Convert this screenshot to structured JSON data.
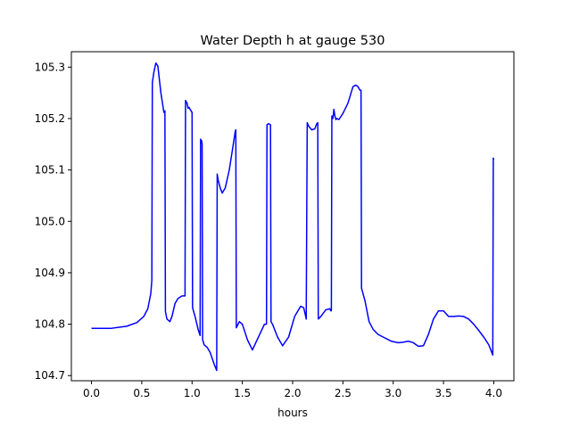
{
  "chart_data": {
    "type": "line",
    "title": "Water Depth h at gauge 530",
    "xlabel": "hours",
    "ylabel": "",
    "xlim": [
      -0.2,
      4.2
    ],
    "ylim": [
      104.69,
      105.33
    ],
    "grid": false,
    "x_ticks": [
      0.0,
      0.5,
      1.0,
      1.5,
      2.0,
      2.5,
      3.0,
      3.5,
      4.0
    ],
    "x_tick_labels": [
      "0.0",
      "0.5",
      "1.0",
      "1.5",
      "2.0",
      "2.5",
      "3.0",
      "3.5",
      "4.0"
    ],
    "y_ticks": [
      104.7,
      104.8,
      104.9,
      105.0,
      105.1,
      105.2,
      105.3
    ],
    "y_tick_labels": [
      "104.7",
      "104.8",
      "104.9",
      "105.0",
      "105.1",
      "105.2",
      "105.3"
    ],
    "series": [
      {
        "color": "#0000ff",
        "x": [
          0.0,
          0.2,
          0.35,
          0.45,
          0.52,
          0.56,
          0.59,
          0.6,
          0.605,
          0.62,
          0.64,
          0.66,
          0.69,
          0.72,
          0.73,
          0.735,
          0.75,
          0.78,
          0.8,
          0.83,
          0.86,
          0.9,
          0.93,
          0.935,
          0.95,
          0.96,
          0.97,
          0.98,
          0.99,
          1.0,
          1.005,
          1.03,
          1.06,
          1.08,
          1.085,
          1.09,
          1.095,
          1.1,
          1.105,
          1.12,
          1.15,
          1.18,
          1.22,
          1.245,
          1.25,
          1.26,
          1.28,
          1.3,
          1.33,
          1.37,
          1.41,
          1.43,
          1.435,
          1.44,
          1.47,
          1.5,
          1.55,
          1.6,
          1.66,
          1.72,
          1.74,
          1.745,
          1.76,
          1.78,
          1.785,
          1.8,
          1.85,
          1.9,
          1.96,
          2.02,
          2.08,
          2.11,
          2.13,
          2.135,
          2.145,
          2.16,
          2.19,
          2.22,
          2.24,
          2.25,
          2.255,
          2.28,
          2.33,
          2.37,
          2.38,
          2.385,
          2.39,
          2.4,
          2.405,
          2.41,
          2.42,
          2.43,
          2.44,
          2.46,
          2.5,
          2.55,
          2.6,
          2.63,
          2.65,
          2.67,
          2.68,
          2.685,
          2.72,
          2.76,
          2.8,
          2.85,
          2.9,
          2.98,
          3.05,
          3.1,
          3.15,
          3.2,
          3.25,
          3.3,
          3.35,
          3.4,
          3.45,
          3.5,
          3.55,
          3.6,
          3.65,
          3.7,
          3.75,
          3.8,
          3.85,
          3.9,
          3.95,
          3.99,
          3.995,
          4.0
        ],
        "y": [
          104.792,
          104.792,
          104.796,
          104.803,
          104.815,
          104.83,
          104.86,
          104.885,
          105.27,
          105.29,
          105.308,
          105.302,
          105.25,
          105.212,
          105.215,
          104.825,
          104.81,
          104.805,
          104.815,
          104.84,
          104.85,
          104.855,
          104.855,
          105.235,
          105.23,
          105.22,
          105.222,
          105.218,
          105.215,
          105.212,
          104.832,
          104.815,
          104.79,
          104.778,
          105.16,
          105.155,
          105.157,
          105.15,
          104.77,
          104.76,
          104.755,
          104.745,
          104.722,
          104.71,
          105.092,
          105.08,
          105.065,
          105.055,
          105.065,
          105.1,
          105.15,
          105.176,
          105.178,
          104.793,
          104.805,
          104.8,
          104.77,
          104.75,
          104.775,
          104.8,
          104.8,
          105.188,
          105.19,
          105.188,
          104.805,
          104.8,
          104.775,
          104.758,
          104.775,
          104.815,
          104.835,
          104.832,
          104.815,
          104.81,
          105.192,
          105.185,
          105.178,
          105.18,
          105.19,
          105.192,
          104.81,
          104.815,
          104.828,
          104.83,
          104.826,
          104.826,
          105.205,
          105.2,
          105.208,
          105.218,
          105.205,
          105.198,
          105.2,
          105.198,
          105.21,
          105.23,
          105.262,
          105.265,
          105.262,
          105.255,
          105.255,
          104.87,
          104.845,
          104.805,
          104.79,
          104.78,
          104.775,
          104.767,
          104.764,
          104.765,
          104.767,
          104.764,
          104.757,
          104.758,
          104.78,
          104.81,
          104.826,
          104.826,
          104.815,
          104.815,
          104.816,
          104.815,
          104.81,
          104.8,
          104.788,
          104.775,
          104.76,
          104.74,
          105.123,
          105.12
        ]
      }
    ]
  }
}
